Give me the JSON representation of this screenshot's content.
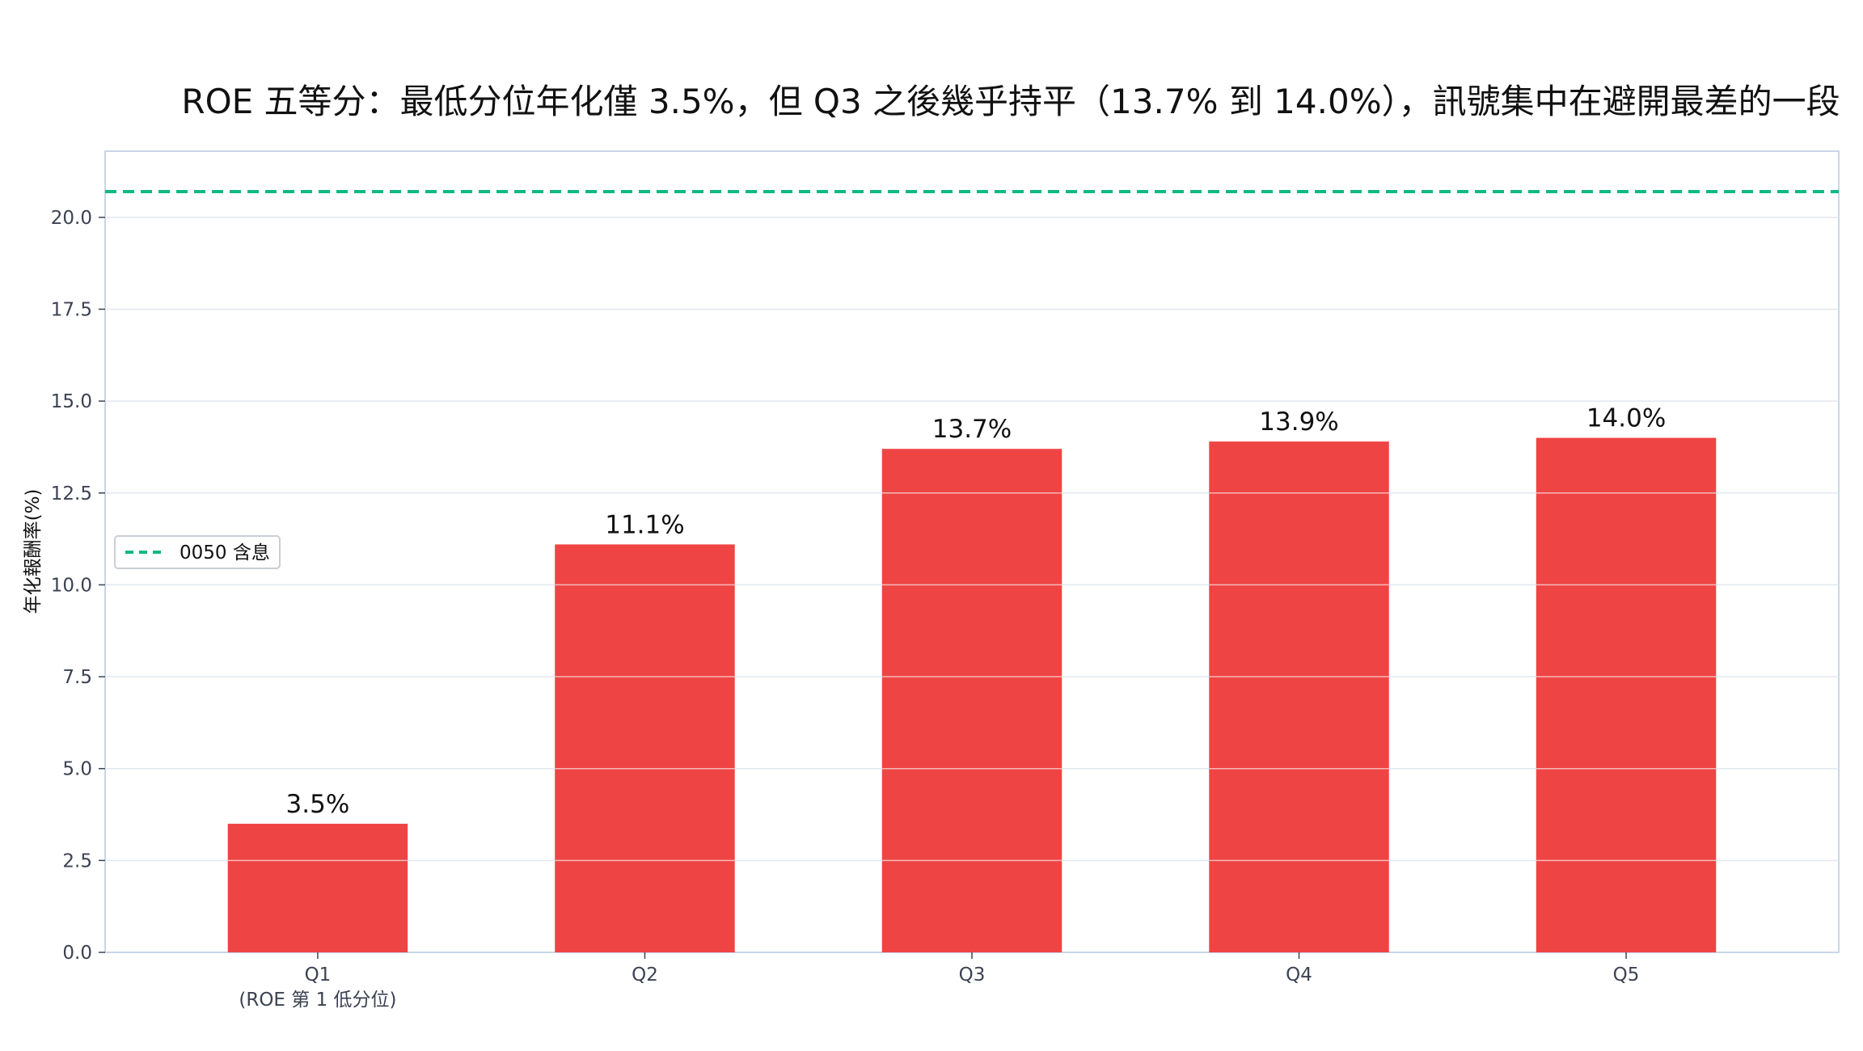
{
  "chart_data": {
    "type": "bar",
    "title": "ROE 五等分：最低分位年化僅 3.5%，但 Q3 之後幾乎持平（13.7% 到 14.0%），訊號集中在避開最差的一段",
    "xlabel": "",
    "ylabel": "年化報酬率(%)",
    "categories": [
      "Q1",
      "Q2",
      "Q3",
      "Q4",
      "Q5"
    ],
    "category_sublabels": [
      "(ROE 第 1 低分位)",
      "",
      "",
      "",
      ""
    ],
    "values": [
      3.5,
      11.1,
      13.7,
      13.9,
      14.0
    ],
    "value_labels": [
      "3.5%",
      "11.1%",
      "13.7%",
      "13.9%",
      "14.0%"
    ],
    "ylim": [
      0,
      21.8
    ],
    "yticks": [
      "0.0",
      "2.5",
      "5.0",
      "7.5",
      "10.0",
      "12.5",
      "15.0",
      "17.5",
      "20.0"
    ],
    "reference_line": {
      "name": "0050 含息",
      "value": 20.7,
      "color": "#10b981",
      "style": "dashed"
    },
    "bar_color": "#ef4444",
    "grid": true,
    "legend_position": "center-left"
  }
}
